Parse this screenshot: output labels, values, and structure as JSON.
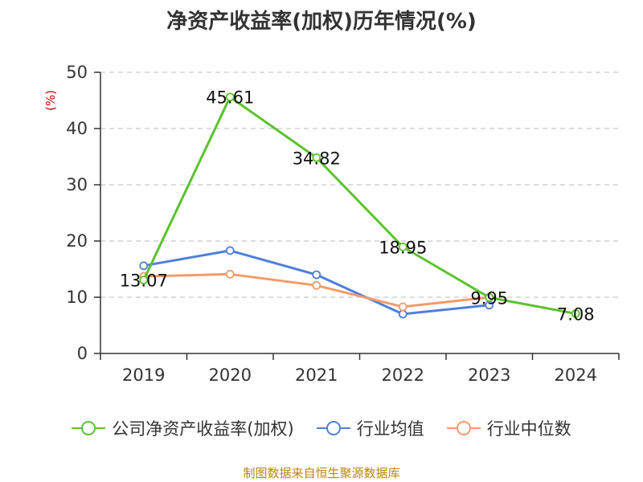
{
  "title": "净资产收益率(加权)历年情况(%)",
  "source": "制图数据来自恒生聚源数据库",
  "colors": {
    "company": "#5cc22e",
    "industry_avg": "#4f7fdc",
    "industry_median": "#f59a6a",
    "axis": "#333333",
    "grid": "#bbbbbb",
    "unit_label": "#cc0000"
  },
  "chart_data": {
    "type": "line",
    "title": "净资产收益率(加权)历年情况(%)",
    "ylabel": "(%)",
    "xlabel": "",
    "categories": [
      "2019",
      "2020",
      "2021",
      "2022",
      "2023",
      "2024"
    ],
    "ylim": [
      0,
      50
    ],
    "yticks": [
      0,
      10,
      20,
      30,
      40,
      50
    ],
    "grid": true,
    "legend_position": "bottom",
    "series": [
      {
        "name": "公司净资产收益率(加权)",
        "color": "#5cc22e",
        "values": [
          13.07,
          45.61,
          34.82,
          18.95,
          9.95,
          7.08
        ],
        "labels": [
          "13.07",
          "45.61",
          "34.82",
          "18.95",
          "9.95",
          "7.08"
        ]
      },
      {
        "name": "行业均值",
        "color": "#4f7fdc",
        "values": [
          15.6,
          18.3,
          14.0,
          7.0,
          8.6,
          null
        ]
      },
      {
        "name": "行业中位数",
        "color": "#f59a6a",
        "values": [
          13.7,
          14.1,
          12.1,
          8.3,
          10.0,
          null
        ]
      }
    ]
  }
}
